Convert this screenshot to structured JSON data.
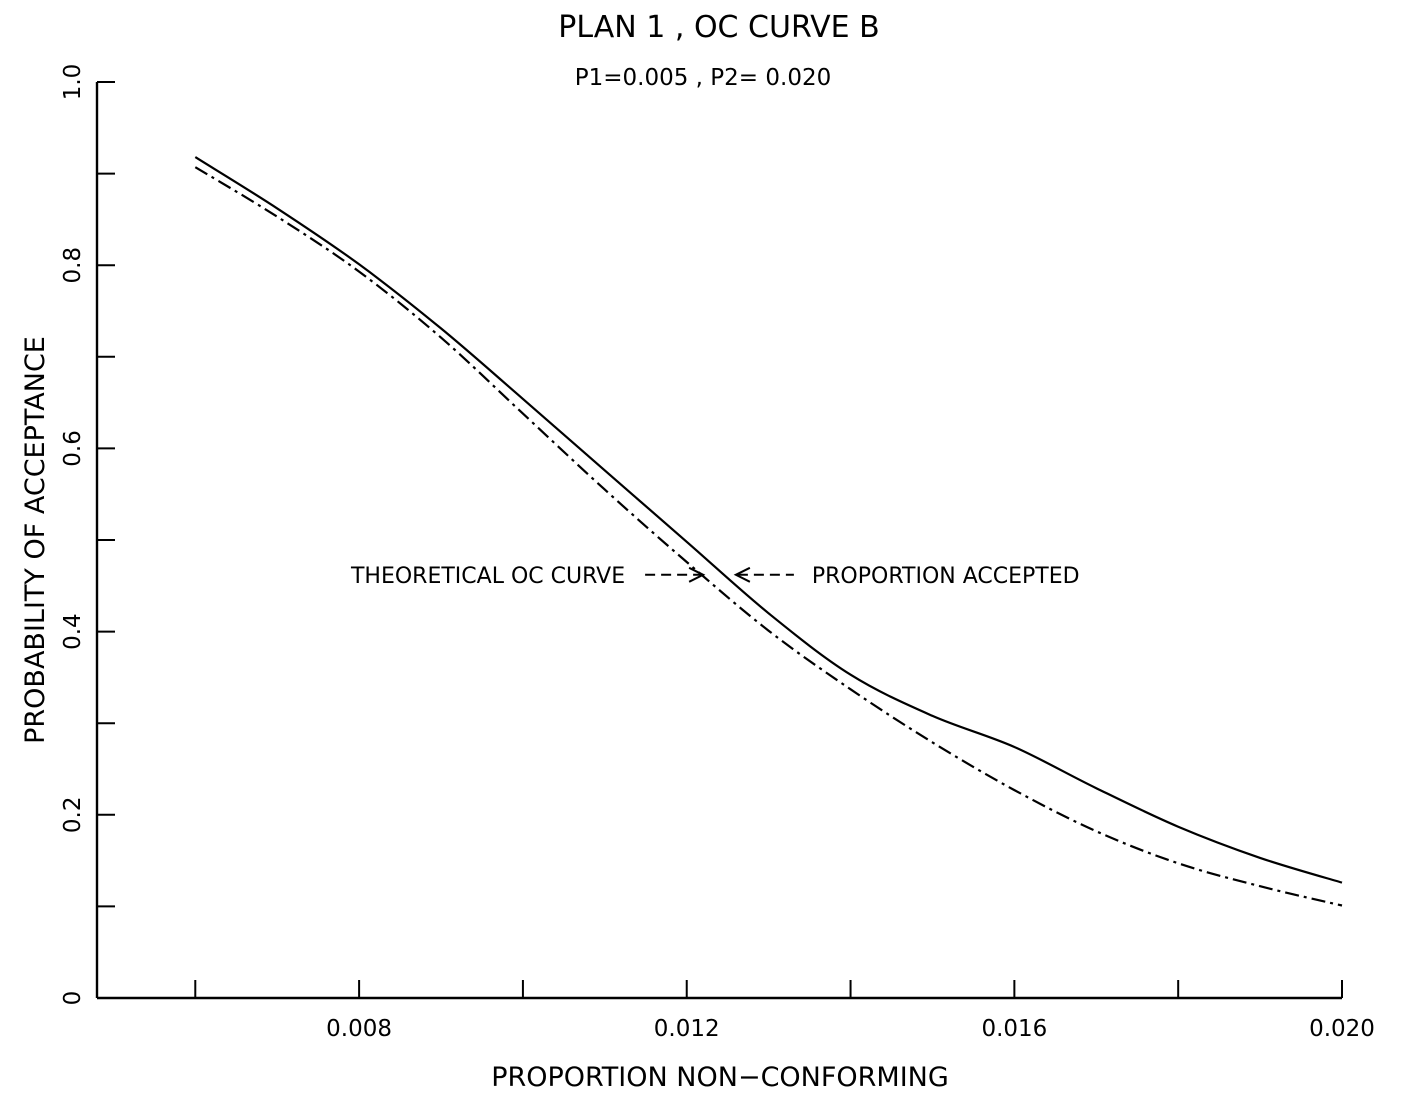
{
  "chart_data": {
    "type": "line",
    "title": "PLAN 1 , OC CURVE B",
    "subtitle": "P1=0.005 , P2= 0.020",
    "xlabel": "PROPORTION NON−CONFORMING",
    "ylabel": "PROBABILITY OF ACCEPTANCE",
    "xlim": [
      0.0048,
      0.02
    ],
    "ylim": [
      0,
      1.0
    ],
    "xticks": [
      0.006,
      0.008,
      0.01,
      0.012,
      0.014,
      0.016,
      0.018,
      0.02
    ],
    "xtick_labels": [
      {
        "value": 0.008,
        "label": "0.008"
      },
      {
        "value": 0.012,
        "label": "0.012"
      },
      {
        "value": 0.016,
        "label": "0.016"
      },
      {
        "value": 0.02,
        "label": "0.020"
      }
    ],
    "yticks": [
      0,
      0.1,
      0.2,
      0.3,
      0.4,
      0.5,
      0.6,
      0.7,
      0.8,
      0.9,
      1.0
    ],
    "ytick_labels": [
      {
        "value": 0,
        "label": "0"
      },
      {
        "value": 0.2,
        "label": "0.2"
      },
      {
        "value": 0.4,
        "label": "0.4"
      },
      {
        "value": 0.6,
        "label": "0.6"
      },
      {
        "value": 0.8,
        "label": "0.8"
      },
      {
        "value": 1.0,
        "label": "1.0"
      }
    ],
    "grid": false,
    "legend": "none",
    "series": [
      {
        "name": "PROPORTION ACCEPTED",
        "style": "solid",
        "x": [
          0.006,
          0.007,
          0.008,
          0.009,
          0.01,
          0.011,
          0.012,
          0.013,
          0.014,
          0.015,
          0.016,
          0.017,
          0.018,
          0.019,
          0.02
        ],
        "y": [
          0.918,
          0.862,
          0.801,
          0.731,
          0.654,
          0.576,
          0.498,
          0.42,
          0.353,
          0.308,
          0.274,
          0.229,
          0.187,
          0.153,
          0.126
        ]
      },
      {
        "name": "THEORETICAL OC CURVE",
        "style": "dash-dot",
        "x": [
          0.006,
          0.007,
          0.008,
          0.009,
          0.01,
          0.011,
          0.012,
          0.013,
          0.014,
          0.015,
          0.016,
          0.017,
          0.018,
          0.019,
          0.02
        ],
        "y": [
          0.907,
          0.853,
          0.793,
          0.721,
          0.638,
          0.555,
          0.476,
          0.401,
          0.337,
          0.279,
          0.227,
          0.182,
          0.147,
          0.122,
          0.101
        ]
      }
    ],
    "annotations": [
      {
        "text": "THEORETICAL OC CURVE",
        "points_to": "THEORETICAL OC CURVE",
        "arrow": "--->",
        "x": 0.0122,
        "y": 0.462
      },
      {
        "text": "PROPORTION ACCEPTED",
        "points_to": "PROPORTION ACCEPTED",
        "arrow": "<---",
        "x": 0.0126,
        "y": 0.462
      }
    ],
    "colors": {
      "foreground": "#000000",
      "background": "#ffffff"
    }
  }
}
